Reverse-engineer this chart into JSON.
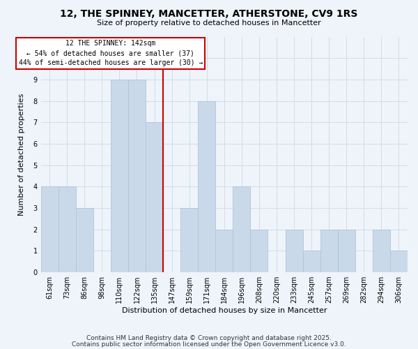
{
  "title": "12, THE SPINNEY, MANCETTER, ATHERSTONE, CV9 1RS",
  "subtitle": "Size of property relative to detached houses in Mancetter",
  "xlabel": "Distribution of detached houses by size in Mancetter",
  "ylabel": "Number of detached properties",
  "footer1": "Contains HM Land Registry data © Crown copyright and database right 2025.",
  "footer2": "Contains public sector information licensed under the Open Government Licence v3.0.",
  "bin_labels": [
    "61sqm",
    "73sqm",
    "86sqm",
    "98sqm",
    "110sqm",
    "122sqm",
    "135sqm",
    "147sqm",
    "159sqm",
    "171sqm",
    "184sqm",
    "196sqm",
    "208sqm",
    "220sqm",
    "233sqm",
    "245sqm",
    "257sqm",
    "269sqm",
    "282sqm",
    "294sqm",
    "306sqm"
  ],
  "bar_values": [
    4,
    4,
    3,
    0,
    9,
    9,
    7,
    0,
    3,
    8,
    2,
    4,
    2,
    0,
    2,
    1,
    2,
    2,
    0,
    2,
    1
  ],
  "bar_color": "#c9d9ea",
  "bar_edge_color": "#b0c4d8",
  "marker_line_color": "#cc0000",
  "annotation_line1": "12 THE SPINNEY: 142sqm",
  "annotation_line2": "← 54% of detached houses are smaller (37)",
  "annotation_line3": "44% of semi-detached houses are larger (30) →",
  "annotation_box_facecolor": "#ffffff",
  "annotation_box_edgecolor": "#cc0000",
  "ylim_max": 11,
  "grid_color": "#d0dde8",
  "bg_color": "#eef4fa",
  "title_fontsize": 10,
  "subtitle_fontsize": 8,
  "ylabel_fontsize": 8,
  "xlabel_fontsize": 8,
  "tick_fontsize": 7,
  "footer_fontsize": 6.5
}
